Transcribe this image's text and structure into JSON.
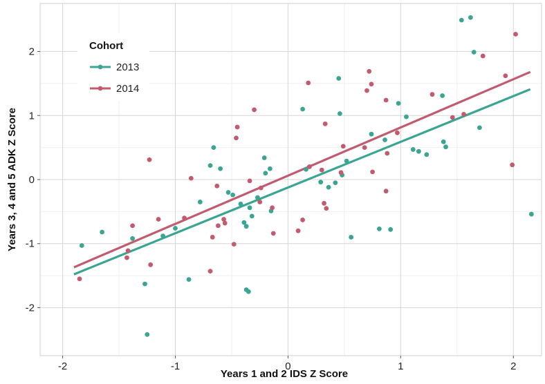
{
  "chart_data": {
    "type": "scatter",
    "xlabel": "Years 1 and 2 IDS Z Score",
    "ylabel": "Years 3, 4 and 5 ADK Z Score",
    "xlim": [
      -2.2,
      2.25
    ],
    "ylim": [
      -2.75,
      2.75
    ],
    "xticks": [
      -2,
      -1,
      0,
      1,
      2
    ],
    "yticks": [
      -2,
      -1,
      0,
      1,
      2
    ],
    "xtick_labels": [
      "-2",
      "-1",
      "0",
      "1",
      "2"
    ],
    "ytick_labels": [
      "-2",
      "-1",
      "0",
      "1",
      "2"
    ],
    "grid": true,
    "legend": {
      "title": "Cohort",
      "position": "top-left"
    },
    "series": [
      {
        "name": "2013",
        "color": "#3aa592",
        "points": [
          {
            "x": -1.83,
            "y": -1.03
          },
          {
            "x": -1.65,
            "y": -0.82
          },
          {
            "x": -1.38,
            "y": -0.92
          },
          {
            "x": -1.27,
            "y": -1.63
          },
          {
            "x": -1.25,
            "y": -2.42
          },
          {
            "x": -1.11,
            "y": -0.88
          },
          {
            "x": -1.0,
            "y": -0.76
          },
          {
            "x": -0.88,
            "y": -1.56
          },
          {
            "x": -0.78,
            "y": -0.35
          },
          {
            "x": -0.69,
            "y": 0.22
          },
          {
            "x": -0.66,
            "y": 0.5
          },
          {
            "x": -0.6,
            "y": 0.17
          },
          {
            "x": -0.53,
            "y": -0.2
          },
          {
            "x": -0.49,
            "y": -0.24
          },
          {
            "x": -0.42,
            "y": -0.38
          },
          {
            "x": -0.39,
            "y": -0.67
          },
          {
            "x": -0.37,
            "y": -0.73
          },
          {
            "x": -0.37,
            "y": -1.72
          },
          {
            "x": -0.35,
            "y": -1.75
          },
          {
            "x": -0.34,
            "y": -0.44
          },
          {
            "x": -0.32,
            "y": -0.57
          },
          {
            "x": -0.27,
            "y": -0.28
          },
          {
            "x": -0.21,
            "y": 0.34
          },
          {
            "x": -0.2,
            "y": 0.1
          },
          {
            "x": -0.16,
            "y": 0.17
          },
          {
            "x": -0.15,
            "y": -0.49
          },
          {
            "x": 0.13,
            "y": 1.1
          },
          {
            "x": 0.16,
            "y": 0.16
          },
          {
            "x": 0.29,
            "y": -0.04
          },
          {
            "x": 0.36,
            "y": -0.12
          },
          {
            "x": 0.42,
            "y": -0.05
          },
          {
            "x": 0.45,
            "y": 1.58
          },
          {
            "x": 0.46,
            "y": 1.03
          },
          {
            "x": 0.48,
            "y": 0.07
          },
          {
            "x": 0.52,
            "y": 0.29
          },
          {
            "x": 0.56,
            "y": -0.9
          },
          {
            "x": 0.74,
            "y": 0.71
          },
          {
            "x": 0.81,
            "y": -0.77
          },
          {
            "x": 0.86,
            "y": 0.62
          },
          {
            "x": 0.91,
            "y": -0.78
          },
          {
            "x": 0.98,
            "y": 1.19
          },
          {
            "x": 1.05,
            "y": 0.98
          },
          {
            "x": 1.11,
            "y": 0.47
          },
          {
            "x": 1.16,
            "y": 0.44
          },
          {
            "x": 1.23,
            "y": 0.39
          },
          {
            "x": 1.37,
            "y": 1.31
          },
          {
            "x": 1.38,
            "y": 0.59
          },
          {
            "x": 1.4,
            "y": 0.51
          },
          {
            "x": 1.54,
            "y": 2.49
          },
          {
            "x": 1.62,
            "y": 2.53
          },
          {
            "x": 1.65,
            "y": 1.99
          },
          {
            "x": 1.7,
            "y": 0.81
          },
          {
            "x": 2.16,
            "y": -0.54
          }
        ],
        "fit": {
          "x": [
            -1.9,
            2.15
          ],
          "y": [
            -1.48,
            1.41
          ]
        }
      },
      {
        "name": "2014",
        "color": "#c25b6e",
        "points": [
          {
            "x": -1.85,
            "y": -1.55
          },
          {
            "x": -1.43,
            "y": -1.22
          },
          {
            "x": -1.42,
            "y": -1.11
          },
          {
            "x": -1.38,
            "y": -0.72
          },
          {
            "x": -1.23,
            "y": 0.31
          },
          {
            "x": -1.22,
            "y": -1.33
          },
          {
            "x": -1.15,
            "y": -0.62
          },
          {
            "x": -0.92,
            "y": -0.6
          },
          {
            "x": -0.86,
            "y": 0.02
          },
          {
            "x": -0.69,
            "y": -1.43
          },
          {
            "x": -0.67,
            "y": -0.9
          },
          {
            "x": -0.63,
            "y": -0.1
          },
          {
            "x": -0.62,
            "y": -0.72
          },
          {
            "x": -0.57,
            "y": -0.62
          },
          {
            "x": -0.56,
            "y": -0.68
          },
          {
            "x": -0.48,
            "y": -1.01
          },
          {
            "x": -0.46,
            "y": 0.65
          },
          {
            "x": -0.45,
            "y": 0.82
          },
          {
            "x": -0.34,
            "y": -0.02
          },
          {
            "x": -0.3,
            "y": 1.09
          },
          {
            "x": -0.25,
            "y": -0.35
          },
          {
            "x": -0.24,
            "y": -0.13
          },
          {
            "x": -0.14,
            "y": -0.44
          },
          {
            "x": -0.13,
            "y": -0.84
          },
          {
            "x": 0.09,
            "y": -0.8
          },
          {
            "x": 0.13,
            "y": -0.63
          },
          {
            "x": 0.18,
            "y": 1.51
          },
          {
            "x": 0.19,
            "y": 0.2
          },
          {
            "x": 0.3,
            "y": 0.15
          },
          {
            "x": 0.32,
            "y": -0.37
          },
          {
            "x": 0.33,
            "y": 0.87
          },
          {
            "x": 0.34,
            "y": -0.45
          },
          {
            "x": 0.47,
            "y": 0.11
          },
          {
            "x": 0.49,
            "y": 0.52
          },
          {
            "x": 0.68,
            "y": 0.5
          },
          {
            "x": 0.7,
            "y": 1.39
          },
          {
            "x": 0.72,
            "y": 1.69
          },
          {
            "x": 0.74,
            "y": 1.49
          },
          {
            "x": 0.75,
            "y": 0.12
          },
          {
            "x": 0.87,
            "y": 1.24
          },
          {
            "x": 0.87,
            "y": -0.18
          },
          {
            "x": 0.88,
            "y": 0.41
          },
          {
            "x": 0.97,
            "y": 0.73
          },
          {
            "x": 1.28,
            "y": 1.33
          },
          {
            "x": 1.46,
            "y": 0.97
          },
          {
            "x": 1.56,
            "y": 1.02
          },
          {
            "x": 1.73,
            "y": 1.93
          },
          {
            "x": 1.93,
            "y": 1.62
          },
          {
            "x": 1.99,
            "y": 0.23
          },
          {
            "x": 2.02,
            "y": 2.27
          }
        ],
        "fit": {
          "x": [
            -1.9,
            2.15
          ],
          "y": [
            -1.37,
            1.68
          ]
        }
      }
    ]
  }
}
